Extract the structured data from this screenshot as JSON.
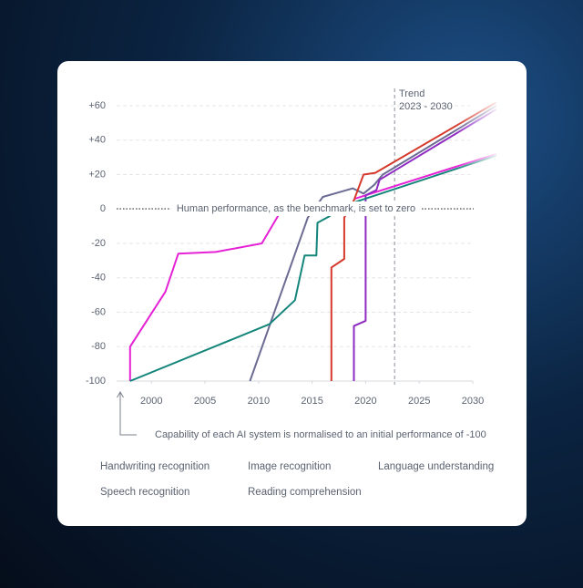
{
  "chart_data": {
    "type": "line",
    "xlim": [
      1997,
      2030
    ],
    "ylim": [
      -100,
      60
    ],
    "xticks": [
      2000,
      2005,
      2010,
      2015,
      2020,
      2025,
      2030
    ],
    "yticks": [
      {
        "value": 60,
        "label": "+60"
      },
      {
        "value": 40,
        "label": "+40"
      },
      {
        "value": 20,
        "label": "+20"
      },
      0,
      -20,
      -40,
      -60,
      -80,
      -100
    ],
    "grid": true,
    "trend_label": [
      "Trend",
      "2023 - 2030"
    ],
    "trend_x": 2022.7,
    "benchmark_annotation": "Human performance, as the benchmark, is set to zero",
    "baseline_annotation": "Capability of each AI system is normalised to an initial performance of -100",
    "series": [
      {
        "name": "Handwriting recognition",
        "color": "#e521d6",
        "x": [
          1998,
          1998,
          2001.3,
          2002.5,
          2006,
          2010.3,
          2012.2,
          null,
          2019,
          2032.2
        ],
        "values": [
          -100,
          -80,
          -48,
          -26,
          -25,
          -20,
          0,
          null,
          6,
          32
        ]
      },
      {
        "name": "Image recognition",
        "color": "#6b6b93",
        "x": [
          2009.2,
          2014.6,
          2016,
          2018.8,
          2019.8,
          2020.8,
          2021.6,
          2032.2
        ],
        "values": [
          -100,
          -5,
          7,
          12,
          9,
          14,
          20,
          60
        ]
      },
      {
        "name": "Language understanding",
        "color": "#8e2bc2",
        "x": [
          2018.9,
          2018.9,
          2020,
          2020,
          2021,
          2021.3,
          2032.2
        ],
        "values": [
          -100,
          -68,
          -65,
          8,
          11,
          17,
          58
        ]
      },
      {
        "name": "Speech recognition",
        "color": "#13857a",
        "x": [
          1998,
          2011,
          2013.4,
          2014.3,
          2015.4,
          2015.5,
          2016.7,
          null,
          2019,
          2032.2
        ],
        "values": [
          -100,
          -67,
          -53,
          -27,
          -27,
          -8,
          -4,
          null,
          4,
          31
        ]
      },
      {
        "name": "Reading comprehension",
        "color": "#d5392c",
        "x": [
          2016.8,
          2016.8,
          2018,
          2018,
          2018.9,
          2019.8,
          2020.9,
          2032.2
        ],
        "values": [
          -100,
          -34,
          -29,
          -5,
          5,
          20,
          21,
          62
        ]
      }
    ]
  }
}
